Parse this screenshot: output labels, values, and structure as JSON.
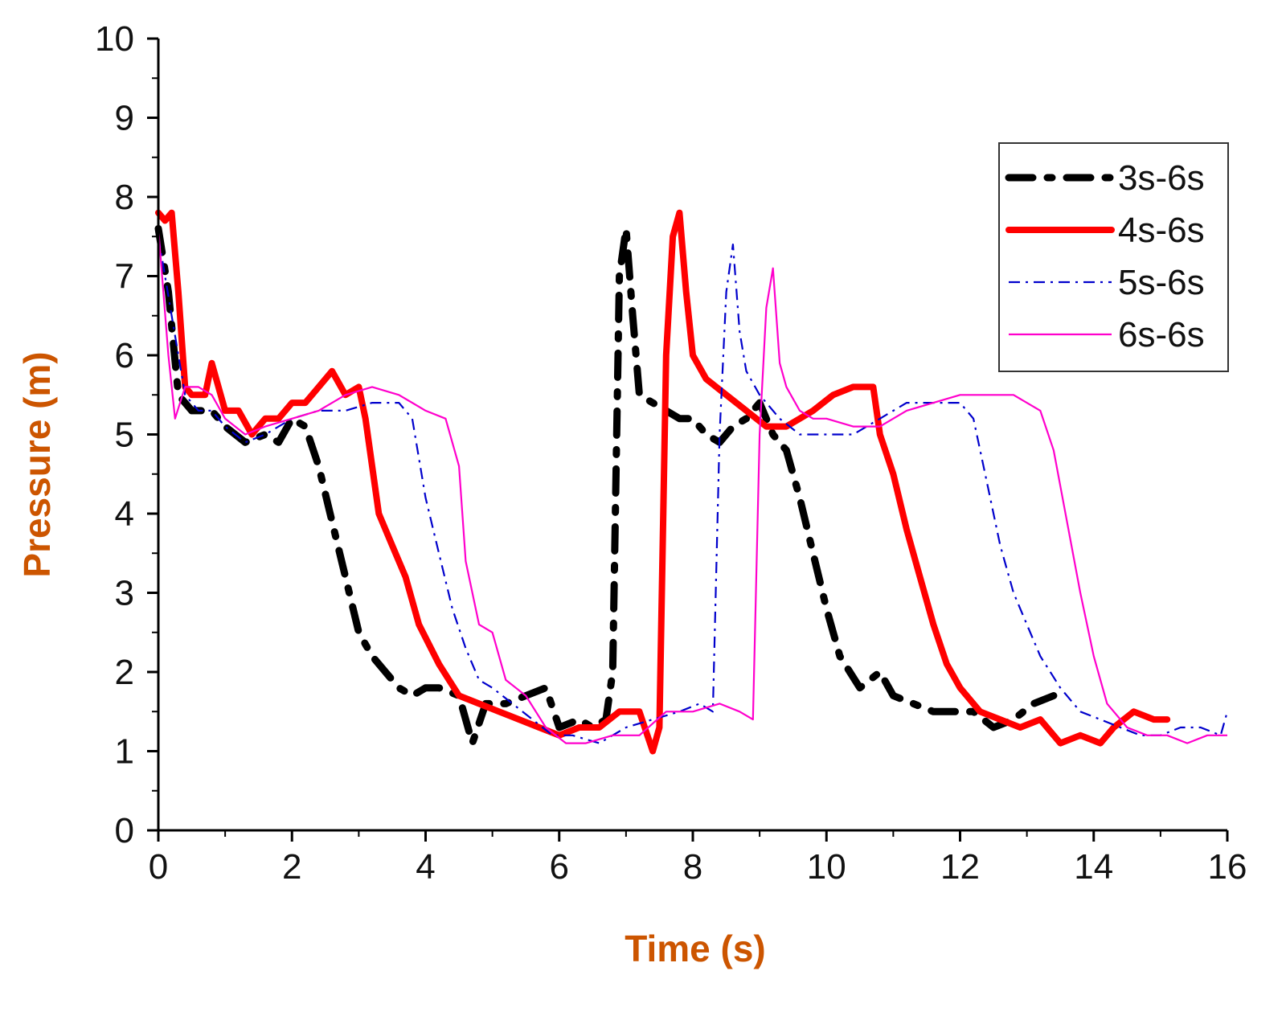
{
  "chart_data": {
    "type": "line",
    "title": "",
    "xlabel": "Time (s)",
    "ylabel": "Pressure (m)",
    "xlim": [
      0,
      16
    ],
    "ylim": [
      0,
      10
    ],
    "xticks": [
      0,
      2,
      4,
      6,
      8,
      10,
      12,
      14,
      16
    ],
    "yticks": [
      0,
      1,
      2,
      3,
      4,
      5,
      6,
      7,
      8,
      9,
      10
    ],
    "grid": false,
    "legend_position": "top-right",
    "axis_title_color": "#cc5500",
    "series": [
      {
        "name": "3s-6s",
        "color": "#000000",
        "style": "dash-dot-thick",
        "x": [
          0,
          0.15,
          0.3,
          0.5,
          0.8,
          1.0,
          1.3,
          1.6,
          1.8,
          2.0,
          2.2,
          2.4,
          2.6,
          2.8,
          3.0,
          3.2,
          3.4,
          3.6,
          3.8,
          4.0,
          4.2,
          4.5,
          4.7,
          4.9,
          5.2,
          5.5,
          5.8,
          6.0,
          6.3,
          6.5,
          6.7,
          6.8,
          6.9,
          7.0,
          7.1,
          7.2,
          7.4,
          7.6,
          7.8,
          8.0,
          8.2,
          8.4,
          8.6,
          8.8,
          9.0,
          9.2,
          9.4,
          9.6,
          9.8,
          10.0,
          10.2,
          10.5,
          10.8,
          11.0,
          11.3,
          11.6,
          11.9,
          12.2,
          12.5,
          12.8,
          13.1,
          13.4
        ],
        "y": [
          7.6,
          6.8,
          5.5,
          5.3,
          5.3,
          5.1,
          4.9,
          5.0,
          4.9,
          5.2,
          5.1,
          4.6,
          3.9,
          3.2,
          2.5,
          2.2,
          2.0,
          1.8,
          1.7,
          1.8,
          1.8,
          1.7,
          1.1,
          1.6,
          1.6,
          1.7,
          1.8,
          1.3,
          1.4,
          1.3,
          1.4,
          2.0,
          7.0,
          7.6,
          6.5,
          5.5,
          5.4,
          5.3,
          5.2,
          5.2,
          5.0,
          4.9,
          5.1,
          5.2,
          5.4,
          5.0,
          4.8,
          4.2,
          3.5,
          2.8,
          2.2,
          1.8,
          2.0,
          1.7,
          1.6,
          1.5,
          1.5,
          1.5,
          1.3,
          1.4,
          1.6,
          1.7
        ]
      },
      {
        "name": "4s-6s",
        "color": "#ff0000",
        "style": "solid-thick",
        "x": [
          0,
          0.1,
          0.2,
          0.3,
          0.4,
          0.5,
          0.7,
          0.8,
          1.0,
          1.2,
          1.4,
          1.6,
          1.8,
          2.0,
          2.2,
          2.4,
          2.6,
          2.8,
          3.0,
          3.1,
          3.2,
          3.3,
          3.5,
          3.7,
          3.9,
          4.2,
          4.5,
          4.8,
          5.1,
          5.4,
          5.7,
          6.0,
          6.3,
          6.6,
          6.9,
          7.2,
          7.4,
          7.5,
          7.6,
          7.7,
          7.8,
          7.9,
          8.0,
          8.2,
          8.5,
          8.8,
          9.1,
          9.4,
          9.6,
          9.8,
          10.1,
          10.4,
          10.7,
          10.8,
          11.0,
          11.2,
          11.4,
          11.6,
          11.8,
          12.0,
          12.3,
          12.6,
          12.9,
          13.2,
          13.5,
          13.8,
          14.1,
          14.3,
          14.6,
          14.9,
          15.1
        ],
        "y": [
          7.8,
          7.7,
          7.8,
          6.8,
          5.6,
          5.5,
          5.5,
          5.9,
          5.3,
          5.3,
          5.0,
          5.2,
          5.2,
          5.4,
          5.4,
          5.6,
          5.8,
          5.5,
          5.6,
          5.2,
          4.6,
          4.0,
          3.6,
          3.2,
          2.6,
          2.1,
          1.7,
          1.6,
          1.5,
          1.4,
          1.3,
          1.2,
          1.3,
          1.3,
          1.5,
          1.5,
          1.0,
          1.3,
          6.0,
          7.5,
          7.8,
          6.8,
          6.0,
          5.7,
          5.5,
          5.3,
          5.1,
          5.1,
          5.2,
          5.3,
          5.5,
          5.6,
          5.6,
          5.0,
          4.5,
          3.8,
          3.2,
          2.6,
          2.1,
          1.8,
          1.5,
          1.4,
          1.3,
          1.4,
          1.1,
          1.2,
          1.1,
          1.3,
          1.5,
          1.4,
          1.4
        ]
      },
      {
        "name": "5s-6s",
        "color": "#0000cc",
        "style": "dash-dot-thin",
        "x": [
          0,
          0.2,
          0.4,
          0.6,
          0.8,
          1.0,
          1.3,
          1.6,
          2.0,
          2.4,
          2.8,
          3.2,
          3.6,
          3.8,
          4.0,
          4.2,
          4.4,
          4.6,
          4.8,
          5.0,
          5.3,
          5.6,
          5.9,
          6.2,
          6.6,
          7.0,
          7.4,
          7.8,
          8.1,
          8.3,
          8.4,
          8.5,
          8.6,
          8.7,
          8.8,
          9.0,
          9.3,
          9.6,
          10.0,
          10.4,
          10.8,
          11.2,
          11.6,
          12.0,
          12.2,
          12.4,
          12.6,
          12.8,
          13.0,
          13.2,
          13.5,
          13.8,
          14.1,
          14.4,
          14.7,
          15.0,
          15.3,
          15.6,
          15.9,
          16.0
        ],
        "y": [
          7.5,
          6.5,
          5.5,
          5.3,
          5.3,
          5.1,
          4.9,
          5.0,
          5.2,
          5.3,
          5.3,
          5.4,
          5.4,
          5.2,
          4.2,
          3.5,
          2.8,
          2.3,
          1.9,
          1.8,
          1.6,
          1.4,
          1.2,
          1.2,
          1.1,
          1.3,
          1.4,
          1.5,
          1.6,
          1.5,
          5.0,
          6.8,
          7.4,
          6.3,
          5.8,
          5.5,
          5.2,
          5.0,
          5.0,
          5.0,
          5.2,
          5.4,
          5.4,
          5.4,
          5.2,
          4.4,
          3.6,
          3.0,
          2.6,
          2.2,
          1.8,
          1.5,
          1.4,
          1.3,
          1.2,
          1.2,
          1.3,
          1.3,
          1.2,
          1.5
        ]
      },
      {
        "name": "6s-6s",
        "color": "#ff00cc",
        "style": "solid-thin",
        "x": [
          0,
          0.15,
          0.25,
          0.4,
          0.6,
          0.8,
          1.0,
          1.3,
          1.6,
          2.0,
          2.4,
          2.8,
          3.2,
          3.6,
          4.0,
          4.3,
          4.5,
          4.6,
          4.8,
          5.0,
          5.2,
          5.5,
          5.8,
          6.1,
          6.4,
          6.8,
          7.2,
          7.6,
          8.0,
          8.4,
          8.7,
          8.9,
          9.0,
          9.1,
          9.2,
          9.3,
          9.4,
          9.6,
          9.8,
          10.0,
          10.4,
          10.8,
          11.2,
          11.6,
          12.0,
          12.4,
          12.8,
          13.2,
          13.4,
          13.6,
          13.8,
          14.0,
          14.2,
          14.5,
          14.8,
          15.1,
          15.4,
          15.7,
          16.0
        ],
        "y": [
          7.6,
          6.0,
          5.2,
          5.6,
          5.6,
          5.5,
          5.2,
          5.0,
          5.1,
          5.2,
          5.3,
          5.5,
          5.6,
          5.5,
          5.3,
          5.2,
          4.6,
          3.4,
          2.6,
          2.5,
          1.9,
          1.7,
          1.3,
          1.1,
          1.1,
          1.2,
          1.2,
          1.5,
          1.5,
          1.6,
          1.5,
          1.4,
          5.0,
          6.6,
          7.1,
          5.9,
          5.6,
          5.3,
          5.2,
          5.2,
          5.1,
          5.1,
          5.3,
          5.4,
          5.5,
          5.5,
          5.5,
          5.3,
          4.8,
          3.9,
          3.0,
          2.2,
          1.6,
          1.3,
          1.2,
          1.2,
          1.1,
          1.2,
          1.2
        ]
      }
    ]
  }
}
